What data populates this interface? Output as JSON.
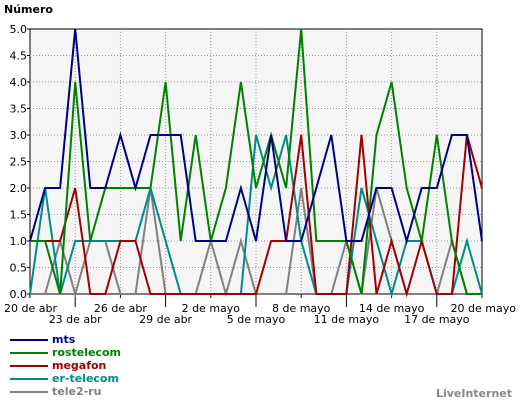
{
  "chart_data": {
    "type": "line",
    "ylabel": "Número",
    "ylim": [
      0,
      5
    ],
    "yticks": [
      "0.0",
      "0.5",
      "1.0",
      "1.5",
      "2.0",
      "2.5",
      "3.0",
      "3.5",
      "4.0",
      "4.5",
      "5.0"
    ],
    "x": [
      "20 de abr",
      "21 de abr",
      "22 de abr",
      "23 de abr",
      "24 de abr",
      "25 de abr",
      "26 de abr",
      "27 de abr",
      "28 de abr",
      "29 de abr",
      "30 de abr",
      "1 de mayo",
      "2 de mayo",
      "3 de mayo",
      "4 de mayo",
      "5 de mayo",
      "6 de mayo",
      "7 de mayo",
      "8 de mayo",
      "9 de mayo",
      "10 de mayo",
      "11 de mayo",
      "12 de mayo",
      "13 de mayo",
      "14 de mayo",
      "15 de mayo",
      "16 de mayo",
      "17 de mayo",
      "18 de mayo",
      "19 de mayo",
      "20 de mayo"
    ],
    "xtick_labels": [
      {
        "index": 0,
        "label": "20 de abr",
        "row": 0
      },
      {
        "index": 3,
        "label": "23 de abr",
        "row": 1
      },
      {
        "index": 6,
        "label": "26 de abr",
        "row": 0
      },
      {
        "index": 9,
        "label": "29 de abr",
        "row": 1
      },
      {
        "index": 12,
        "label": "2 de mayo",
        "row": 0
      },
      {
        "index": 15,
        "label": "5 de mayo",
        "row": 1
      },
      {
        "index": 18,
        "label": "8 de mayo",
        "row": 0
      },
      {
        "index": 21,
        "label": "11 de mayo",
        "row": 1
      },
      {
        "index": 24,
        "label": "14 de mayo",
        "row": 0
      },
      {
        "index": 27,
        "label": "17 de mayo",
        "row": 1
      },
      {
        "index": 30,
        "label": "20 de mayo",
        "row": 0
      }
    ],
    "grid": true,
    "legend_position": "bottom-left",
    "series": [
      {
        "name": "mts",
        "color": "#000080",
        "values": [
          1,
          2,
          2,
          5,
          2,
          2,
          3,
          2,
          3,
          3,
          3,
          1,
          1,
          1,
          2,
          1,
          3,
          1,
          1,
          2,
          3,
          1,
          1,
          2,
          2,
          1,
          2,
          2,
          3,
          3,
          1
        ]
      },
      {
        "name": "rostelecom",
        "color": "#008000",
        "values": [
          1,
          1,
          0,
          4,
          1,
          2,
          2,
          2,
          2,
          4,
          1,
          3,
          1,
          2,
          4,
          2,
          3,
          2,
          5,
          1,
          1,
          1,
          0,
          3,
          4,
          2,
          1,
          3,
          1,
          0,
          0
        ]
      },
      {
        "name": "megafon",
        "color": "#a00000",
        "values": [
          1,
          1,
          1,
          2,
          0,
          0,
          1,
          1,
          0,
          0,
          0,
          0,
          0,
          0,
          0,
          0,
          1,
          1,
          3,
          0,
          0,
          0,
          3,
          0,
          1,
          0,
          1,
          0,
          0,
          3,
          2
        ]
      },
      {
        "name": "er-telecom",
        "color": "#008b8b",
        "values": [
          0,
          2,
          0,
          1,
          1,
          1,
          1,
          1,
          2,
          1,
          0,
          0,
          0,
          0,
          0,
          3,
          2,
          3,
          1,
          0,
          0,
          0,
          2,
          1,
          0,
          1,
          1,
          0,
          0,
          1,
          0
        ]
      },
      {
        "name": "tele2-ru",
        "color": "#808080",
        "values": [
          0,
          0,
          1,
          0,
          1,
          1,
          0,
          0,
          2,
          0,
          0,
          0,
          1,
          0,
          1,
          0,
          0,
          0,
          2,
          0,
          0,
          1,
          0,
          2,
          1,
          0,
          0,
          0,
          1,
          0,
          0
        ]
      }
    ]
  },
  "branding": "LiveInternet"
}
